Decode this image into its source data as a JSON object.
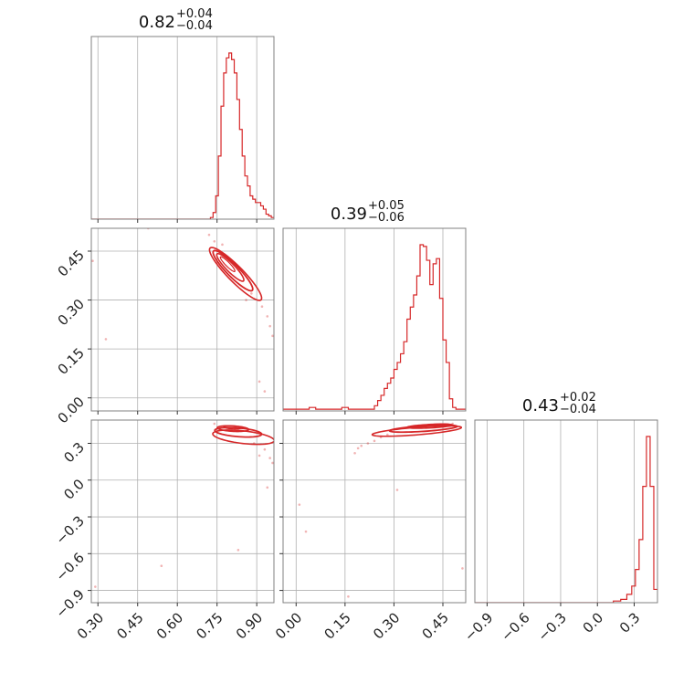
{
  "chart_data": {
    "type": "corner",
    "grid": true,
    "color": "#d62728",
    "parameters": [
      {
        "median": "0.82",
        "plus": "+0.04",
        "minus": "−0.04",
        "range": [
          0.275,
          0.965
        ],
        "ticks": [
          0.3,
          0.45,
          0.6,
          0.75,
          0.9
        ],
        "tick_labels": [
          "0.30",
          "0.45",
          "0.60",
          "0.75",
          "0.90"
        ],
        "histogram": {
          "edges": [
            0.275,
            0.725,
            0.735,
            0.745,
            0.755,
            0.765,
            0.775,
            0.785,
            0.795,
            0.805,
            0.815,
            0.825,
            0.835,
            0.845,
            0.855,
            0.865,
            0.875,
            0.885,
            0.895,
            0.905,
            0.915,
            0.925,
            0.935,
            0.945,
            0.955,
            0.965
          ],
          "counts": [
            0,
            0.01,
            0.04,
            0.14,
            0.38,
            0.68,
            0.88,
            0.97,
            1.0,
            0.96,
            0.88,
            0.72,
            0.54,
            0.38,
            0.26,
            0.2,
            0.14,
            0.12,
            0.1,
            0.1,
            0.08,
            0.06,
            0.03,
            0.02,
            0.01
          ]
        }
      },
      {
        "median": "0.39",
        "plus": "+0.05",
        "minus": "−0.06",
        "range": [
          -0.04,
          0.52
        ],
        "ticks": [
          0.0,
          0.15,
          0.3,
          0.45
        ],
        "tick_labels": [
          "0.00",
          "0.15",
          "0.30",
          "0.45"
        ],
        "histogram": {
          "edges": [
            -0.04,
            0.04,
            0.06,
            0.14,
            0.16,
            0.24,
            0.25,
            0.26,
            0.27,
            0.28,
            0.29,
            0.3,
            0.31,
            0.32,
            0.33,
            0.34,
            0.35,
            0.36,
            0.37,
            0.38,
            0.39,
            0.4,
            0.41,
            0.42,
            0.43,
            0.44,
            0.45,
            0.46,
            0.47,
            0.48,
            0.49,
            0.5,
            0.51,
            0.52
          ],
          "counts": [
            0.01,
            0.02,
            0.01,
            0.02,
            0.01,
            0.03,
            0.06,
            0.09,
            0.13,
            0.16,
            0.19,
            0.24,
            0.28,
            0.33,
            0.4,
            0.53,
            0.6,
            0.67,
            0.78,
            0.96,
            0.95,
            0.87,
            0.73,
            0.85,
            0.88,
            0.65,
            0.41,
            0.28,
            0.07,
            0.02,
            0.01,
            0.01,
            0.01
          ]
        }
      },
      {
        "median": "0.43",
        "plus": "+0.02",
        "minus": "−0.04",
        "range": [
          -1.0,
          0.49
        ],
        "ticks": [
          -0.9,
          -0.6,
          -0.3,
          0.0,
          0.3
        ],
        "tick_labels": [
          "−0.9",
          "−0.6",
          "−0.3",
          "0.0",
          "0.3"
        ],
        "histogram": {
          "edges": [
            -1.0,
            0.13,
            0.19,
            0.24,
            0.28,
            0.31,
            0.34,
            0.37,
            0.4,
            0.43,
            0.46,
            0.49
          ],
          "counts": [
            0,
            0.01,
            0.02,
            0.05,
            0.1,
            0.2,
            0.38,
            0.7,
            1.0,
            0.7,
            0.08
          ]
        }
      }
    ],
    "pairs": [
      {
        "x": 0,
        "y": 1,
        "contours": [
          {
            "center": [
              0.79,
              0.41
            ],
            "widths": [
              0.035,
              0.007
            ],
            "angle": -0.68,
            "stroke": 1.2
          },
          {
            "center": [
              0.8,
              0.4
            ],
            "widths": [
              0.065,
              0.014
            ],
            "angle": -0.68,
            "stroke": 1.6
          },
          {
            "center": [
              0.81,
              0.39
            ],
            "widths": [
              0.095,
              0.02
            ],
            "angle": -0.68,
            "stroke": 1.8
          },
          {
            "center": [
              0.82,
              0.38
            ],
            "widths": [
              0.125,
              0.026
            ],
            "angle": -0.68,
            "stroke": 1.6
          }
        ],
        "points": [
          [
            0.74,
            0.48
          ],
          [
            0.72,
            0.5
          ],
          [
            0.92,
            0.28
          ],
          [
            0.94,
            0.25
          ],
          [
            0.95,
            0.22
          ],
          [
            0.88,
            0.32
          ],
          [
            0.96,
            0.19
          ],
          [
            0.91,
            0.05
          ],
          [
            0.93,
            0.02
          ],
          [
            0.49,
            0.52
          ],
          [
            0.28,
            0.42
          ],
          [
            0.33,
            0.18
          ],
          [
            0.77,
            0.47
          ],
          [
            0.86,
            0.3
          ]
        ]
      },
      {
        "x": 0,
        "y": 2,
        "contours": [
          {
            "center": [
              0.81,
              0.43
            ],
            "widths": [
              0.035,
              0.012
            ],
            "angle": -0.1,
            "stroke": 1.2
          },
          {
            "center": [
              0.81,
              0.42
            ],
            "widths": [
              0.06,
              0.022
            ],
            "angle": -0.14,
            "stroke": 1.6
          },
          {
            "center": [
              0.83,
              0.39
            ],
            "widths": [
              0.09,
              0.035
            ],
            "angle": -0.2,
            "stroke": 1.8
          },
          {
            "center": [
              0.85,
              0.35
            ],
            "widths": [
              0.12,
              0.05
            ],
            "angle": -0.28,
            "stroke": 1.6
          }
        ],
        "points": [
          [
            0.93,
            0.25
          ],
          [
            0.95,
            0.18
          ],
          [
            0.96,
            0.14
          ],
          [
            0.91,
            0.2
          ],
          [
            0.94,
            -0.06
          ],
          [
            0.83,
            -0.57
          ],
          [
            0.54,
            -0.7
          ],
          [
            0.29,
            -0.87
          ],
          [
            0.74,
            0.46
          ],
          [
            0.89,
            0.3
          ]
        ]
      },
      {
        "x": 1,
        "y": 2,
        "contours": [
          {
            "center": [
              0.43,
              0.45
            ],
            "widths": [
              0.04,
              0.008
            ],
            "angle": 0.12,
            "stroke": 1.2
          },
          {
            "center": [
              0.41,
              0.44
            ],
            "widths": [
              0.07,
              0.014
            ],
            "angle": 0.14,
            "stroke": 1.6
          },
          {
            "center": [
              0.39,
              0.42
            ],
            "widths": [
              0.105,
              0.022
            ],
            "angle": 0.18,
            "stroke": 1.8
          },
          {
            "center": [
              0.37,
              0.4
            ],
            "widths": [
              0.14,
              0.03
            ],
            "angle": 0.22,
            "stroke": 1.6
          }
        ],
        "points": [
          [
            0.2,
            0.28
          ],
          [
            0.22,
            0.3
          ],
          [
            0.24,
            0.32
          ],
          [
            0.19,
            0.26
          ],
          [
            0.26,
            0.35
          ],
          [
            0.18,
            0.22
          ],
          [
            0.28,
            0.37
          ],
          [
            0.31,
            -0.08
          ],
          [
            0.01,
            -0.2
          ],
          [
            0.03,
            -0.42
          ],
          [
            0.51,
            -0.72
          ],
          [
            0.16,
            -0.95
          ],
          [
            0.48,
            0.46
          ]
        ]
      }
    ]
  }
}
